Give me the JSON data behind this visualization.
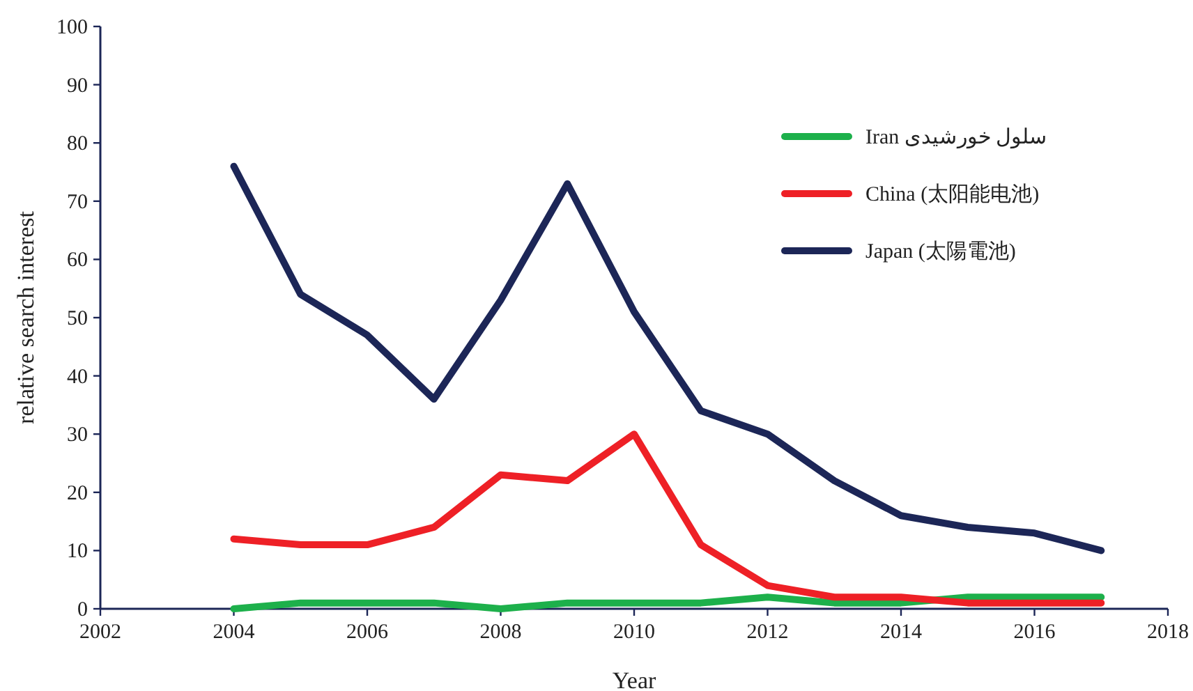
{
  "chart_data": {
    "type": "line",
    "xlabel": "Year",
    "ylabel": "relative search interest",
    "x": [
      2004,
      2005,
      2006,
      2007,
      2008,
      2009,
      2010,
      2011,
      2012,
      2013,
      2014,
      2015,
      2016,
      2017
    ],
    "series": [
      {
        "name": "Iran سلول خورشیدی",
        "color": "#1db04b",
        "values": [
          0,
          1,
          1,
          1,
          0,
          1,
          1,
          1,
          2,
          1,
          1,
          2,
          2,
          2
        ]
      },
      {
        "name": "China (太阳能电池)",
        "color": "#ee2026",
        "values": [
          12,
          11,
          11,
          14,
          23,
          22,
          30,
          11,
          4,
          2,
          2,
          1,
          1,
          1
        ]
      },
      {
        "name": "Japan (太陽電池)",
        "color": "#1c2657",
        "values": [
          76,
          54,
          47,
          36,
          53,
          73,
          51,
          34,
          30,
          22,
          16,
          14,
          13,
          10
        ]
      }
    ],
    "xlim": [
      2002,
      2018
    ],
    "xticks": [
      2002,
      2004,
      2006,
      2008,
      2010,
      2012,
      2014,
      2016,
      2018
    ],
    "ylim": [
      0,
      100
    ],
    "yticks": [
      0,
      10,
      20,
      30,
      40,
      50,
      60,
      70,
      80,
      90,
      100
    ],
    "grid": false,
    "legend": "top right",
    "marker": "none",
    "line_style": "solid"
  }
}
